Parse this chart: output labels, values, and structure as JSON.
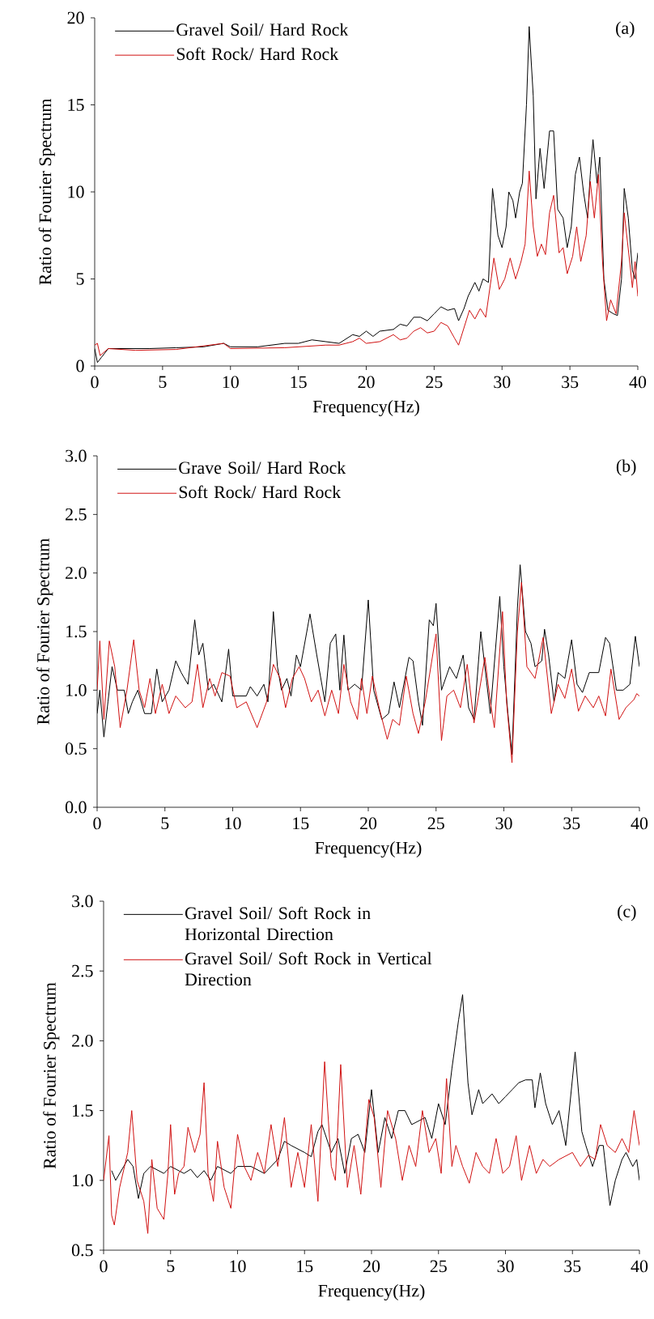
{
  "chart_data": [
    {
      "type": "line",
      "xlabel": "Frequency(Hz)",
      "ylabel": "Ratio of Fourier Spectrum",
      "annotations": [
        "(a)"
      ],
      "legend": "top left",
      "xlim": [
        0,
        40
      ],
      "xticks": [
        0,
        5,
        10,
        15,
        20,
        25,
        30,
        35,
        40
      ],
      "ylim": [
        0,
        20
      ],
      "yticks": [
        0,
        5,
        10,
        15,
        20
      ],
      "series": [
        {
          "name": "Gravel Soil/ Hard Rock",
          "color": "#000000",
          "x": [
            0,
            0.2,
            0.5,
            1,
            2,
            4,
            6,
            8,
            9.5,
            10,
            12,
            14,
            15,
            16,
            17,
            18,
            19,
            19.5,
            20,
            20.5,
            21,
            22,
            22.5,
            23,
            23.5,
            24,
            24.5,
            25,
            25.5,
            26,
            26.5,
            26.8,
            27.2,
            27.5,
            28,
            28.3,
            28.6,
            29,
            29.3,
            29.7,
            30,
            30.3,
            30.5,
            30.8,
            31,
            31.3,
            31.5,
            31.8,
            32,
            32.3,
            32.5,
            32.8,
            33.1,
            33.5,
            33.8,
            34.1,
            34.5,
            34.8,
            35.1,
            35.4,
            35.7,
            36,
            36.3,
            36.5,
            36.7,
            37,
            37.2,
            37.5,
            37.8,
            38.2,
            38.5,
            38.8,
            39,
            39.3,
            39.6,
            39.8,
            40
          ],
          "values": [
            1.0,
            0.2,
            0.5,
            1.0,
            1.0,
            1.0,
            1.05,
            1.1,
            1.3,
            1.1,
            1.1,
            1.3,
            1.3,
            1.5,
            1.4,
            1.3,
            1.8,
            1.7,
            2.0,
            1.7,
            2.0,
            2.1,
            2.4,
            2.3,
            2.8,
            2.8,
            2.6,
            3.0,
            3.4,
            3.2,
            3.3,
            2.6,
            3.3,
            4.0,
            4.8,
            4.3,
            5.0,
            4.8,
            10.2,
            7.5,
            6.8,
            8.0,
            10.0,
            9.5,
            8.5,
            10.0,
            10.5,
            15.0,
            19.5,
            15.5,
            9.6,
            12.5,
            10.2,
            13.5,
            13.5,
            9.0,
            8.5,
            6.8,
            8.0,
            11.0,
            12.0,
            10.0,
            8.5,
            11.0,
            13.0,
            10.5,
            12.0,
            5.0,
            3.2,
            3.0,
            2.9,
            5.0,
            10.2,
            8.5,
            5.5,
            5.0,
            6.5
          ]
        },
        {
          "name": "Soft Rock/ Hard Rock",
          "color": "#d01010",
          "x": [
            0,
            0.2,
            0.4,
            1,
            3,
            6,
            9.5,
            10,
            14,
            17,
            18,
            19,
            19.5,
            20,
            21,
            22,
            22.5,
            23,
            23.5,
            24,
            24.5,
            25,
            25.5,
            26,
            26.5,
            26.8,
            27.2,
            27.6,
            28,
            28.4,
            28.8,
            29.2,
            29.4,
            29.8,
            30.2,
            30.6,
            31,
            31.4,
            31.7,
            32,
            32.3,
            32.6,
            32.9,
            33.2,
            33.5,
            33.8,
            34.2,
            34.5,
            34.8,
            35.2,
            35.5,
            35.8,
            36.2,
            36.5,
            36.8,
            37.1,
            37.4,
            37.7,
            38,
            38.4,
            38.8,
            39,
            39.4,
            39.6,
            39.8,
            40
          ],
          "values": [
            1.2,
            1.3,
            0.6,
            1.0,
            0.9,
            0.95,
            1.3,
            1.0,
            1.05,
            1.2,
            1.2,
            1.4,
            1.6,
            1.3,
            1.4,
            1.8,
            1.5,
            1.6,
            2.0,
            2.2,
            1.9,
            2.0,
            2.5,
            2.3,
            1.6,
            1.2,
            2.2,
            3.2,
            2.7,
            3.3,
            2.8,
            5.0,
            6.2,
            4.4,
            5.0,
            6.2,
            5.0,
            6.0,
            7.0,
            11.2,
            8.0,
            6.3,
            7.0,
            6.4,
            8.8,
            9.8,
            6.5,
            6.8,
            5.3,
            6.3,
            8.0,
            6.0,
            7.5,
            10.6,
            8.5,
            11.0,
            6.0,
            2.6,
            3.8,
            3.0,
            6.0,
            8.8,
            6.0,
            4.5,
            6.0,
            4.0
          ]
        }
      ]
    },
    {
      "type": "line",
      "xlabel": "Frequency(Hz)",
      "ylabel": "Ratio of Fourier Spectrum",
      "annotations": [
        "(b)"
      ],
      "legend": "top left",
      "xlim": [
        0,
        40
      ],
      "xticks": [
        0,
        5,
        10,
        15,
        20,
        25,
        30,
        35,
        40
      ],
      "ylim": [
        0,
        3
      ],
      "yticks": [
        {
          "value": 0,
          "label": "0.0"
        },
        0.5,
        {
          "value": 1,
          "label": "1.0"
        },
        1.5,
        {
          "value": 2,
          "label": "2.0"
        },
        2.5,
        {
          "value": 3,
          "label": "3.0"
        }
      ],
      "series": [
        {
          "name": "Grave Soil/ Hard Rock",
          "color": "#000000",
          "x": [
            0,
            0.2,
            0.5,
            0.8,
            1.1,
            1.5,
            2,
            2.3,
            2.6,
            3,
            3.5,
            4,
            4.4,
            4.8,
            5.3,
            5.8,
            6.2,
            6.7,
            7.2,
            7.5,
            7.8,
            8.2,
            8.6,
            9.2,
            9.7,
            10,
            11,
            11.3,
            11.8,
            12.3,
            12.6,
            13,
            13.3,
            13.6,
            14,
            14.3,
            14.7,
            15,
            15.7,
            16.2,
            16.8,
            17.2,
            17.6,
            17.9,
            18.2,
            18.5,
            19,
            19.5,
            20,
            20.4,
            21,
            21.5,
            21.9,
            22.3,
            23,
            23.3,
            23.7,
            24,
            24.5,
            24.8,
            25,
            25.4,
            26,
            26.5,
            27,
            27.4,
            27.8,
            28.3,
            28.7,
            29,
            29.7,
            30,
            30.3,
            30.6,
            31,
            31.2,
            31.6,
            32,
            32.3,
            32.8,
            33,
            33.3,
            33.7,
            34,
            34.5,
            35,
            35.4,
            35.8,
            36.3,
            37,
            37.5,
            37.8,
            38.3,
            38.8,
            39.3,
            39.7,
            40
          ],
          "values": [
            0.8,
            1.0,
            0.6,
            0.9,
            1.2,
            1.0,
            1.0,
            0.8,
            0.9,
            1.0,
            0.8,
            0.8,
            1.18,
            0.9,
            1.0,
            1.25,
            1.15,
            1.05,
            1.6,
            1.3,
            1.4,
            1.0,
            1.05,
            0.9,
            1.35,
            0.95,
            0.95,
            1.03,
            0.95,
            1.05,
            0.9,
            1.67,
            1.2,
            1.0,
            1.1,
            0.95,
            1.3,
            1.2,
            1.65,
            1.3,
            0.9,
            1.4,
            1.48,
            1.0,
            1.47,
            1.0,
            1.05,
            1.0,
            1.77,
            1.0,
            0.75,
            0.8,
            1.07,
            0.85,
            1.28,
            1.25,
            0.9,
            0.7,
            1.6,
            1.55,
            1.74,
            1.0,
            1.2,
            1.1,
            1.3,
            0.85,
            0.75,
            1.5,
            1.1,
            0.8,
            1.8,
            1.2,
            0.8,
            0.45,
            1.7,
            2.07,
            1.5,
            1.4,
            1.2,
            1.25,
            1.52,
            1.3,
            0.9,
            1.15,
            1.1,
            1.43,
            1.05,
            0.98,
            1.15,
            1.15,
            1.45,
            1.4,
            1.0,
            1.0,
            1.05,
            1.46,
            1.2
          ]
        },
        {
          "name": "Soft Rock/ Hard Rock",
          "color": "#d01010",
          "x": [
            0,
            0.2,
            0.5,
            0.9,
            1.3,
            1.7,
            2.2,
            2.7,
            3.1,
            3.5,
            3.9,
            4.3,
            4.8,
            5.3,
            5.8,
            6.5,
            7,
            7.4,
            7.8,
            8.3,
            8.7,
            9.2,
            9.8,
            10.3,
            11,
            11.8,
            12.5,
            13,
            13.5,
            13.9,
            14.4,
            14.9,
            15.3,
            15.8,
            16.3,
            16.8,
            17.3,
            17.8,
            18.2,
            18.7,
            19.2,
            19.5,
            19.9,
            20.3,
            20.8,
            21.4,
            21.8,
            22.3,
            22.8,
            23.3,
            23.7,
            24.2,
            25,
            25.4,
            25.8,
            26.3,
            26.8,
            27.3,
            27.8,
            28.2,
            28.6,
            29,
            29.3,
            29.9,
            30.2,
            30.6,
            31,
            31.3,
            31.7,
            32.3,
            32.9,
            33.5,
            34,
            34.5,
            35,
            35.5,
            36,
            36.6,
            37,
            37.5,
            37.9,
            38.5,
            39,
            39.6,
            39.8,
            40
          ],
          "values": [
            1.0,
            1.42,
            0.75,
            1.42,
            1.2,
            0.68,
            1.0,
            1.43,
            1.0,
            0.85,
            1.1,
            0.8,
            1.05,
            0.8,
            0.95,
            0.85,
            0.9,
            1.22,
            0.85,
            1.1,
            0.95,
            1.15,
            1.12,
            0.85,
            0.9,
            0.68,
            0.9,
            1.22,
            1.1,
            0.85,
            1.1,
            1.2,
            1.1,
            0.9,
            1.0,
            0.78,
            1.0,
            0.8,
            1.22,
            0.9,
            0.75,
            1.1,
            0.8,
            1.12,
            0.85,
            0.58,
            0.75,
            0.7,
            1.12,
            0.8,
            0.63,
            0.9,
            1.48,
            0.57,
            0.95,
            1.0,
            0.85,
            1.22,
            0.72,
            1.0,
            1.28,
            0.9,
            0.68,
            1.67,
            0.9,
            0.38,
            1.5,
            1.92,
            1.2,
            1.1,
            1.45,
            0.8,
            1.05,
            0.93,
            1.18,
            0.82,
            0.95,
            0.85,
            0.95,
            0.78,
            1.18,
            0.75,
            0.85,
            0.92,
            0.97,
            0.95
          ]
        }
      ]
    },
    {
      "type": "line",
      "xlabel": "Frequency(Hz)",
      "ylabel": "Ratio of Fourier Spectrum",
      "annotations": [
        "(c)"
      ],
      "legend": "top left",
      "xlim": [
        0,
        40
      ],
      "xticks": [
        0,
        5,
        10,
        15,
        20,
        25,
        30,
        35,
        40
      ],
      "ylim": [
        0.5,
        3
      ],
      "yticks": [
        0.5,
        {
          "value": 1,
          "label": "1.0"
        },
        1.5,
        {
          "value": 2,
          "label": "2.0"
        },
        2.5,
        {
          "value": 3,
          "label": "3.0"
        }
      ],
      "series": [
        {
          "name": "Gravel Soil/ Soft Rock in Horizontal Direction",
          "color": "#000000",
          "x": [
            0.6,
            0.9,
            1.5,
            1.8,
            2.2,
            2.6,
            3,
            3.5,
            4.5,
            5,
            6,
            6.5,
            7,
            7.5,
            8,
            8.5,
            9.5,
            10,
            11,
            12,
            13,
            13.5,
            14,
            15,
            15.5,
            16,
            16.3,
            17,
            17.5,
            18,
            18.5,
            19,
            19.5,
            20,
            20.5,
            21,
            21.5,
            22,
            22.5,
            23,
            24,
            24.5,
            25,
            25.5,
            26,
            26.5,
            26.8,
            27.2,
            27.5,
            28,
            28.3,
            29,
            29.5,
            30,
            30.5,
            31,
            31.5,
            32,
            32.2,
            32.6,
            33,
            33.5,
            34,
            34.5,
            35.2,
            35.7,
            36,
            36.5,
            37,
            37.3,
            37.8,
            38.2,
            38.7,
            39,
            39.5,
            39.8,
            40
          ],
          "values": [
            1.07,
            1.0,
            1.1,
            1.15,
            1.1,
            0.87,
            1.05,
            1.1,
            1.05,
            1.1,
            1.05,
            1.08,
            1.02,
            1.07,
            1.0,
            1.1,
            1.05,
            1.1,
            1.1,
            1.05,
            1.15,
            1.28,
            1.25,
            1.2,
            1.17,
            1.35,
            1.4,
            1.2,
            1.3,
            1.05,
            1.3,
            1.33,
            1.2,
            1.65,
            1.2,
            1.45,
            1.3,
            1.5,
            1.5,
            1.4,
            1.45,
            1.3,
            1.55,
            1.4,
            1.8,
            2.15,
            2.33,
            1.7,
            1.47,
            1.65,
            1.55,
            1.62,
            1.55,
            1.6,
            1.65,
            1.7,
            1.72,
            1.72,
            1.52,
            1.77,
            1.55,
            1.4,
            1.5,
            1.25,
            1.92,
            1.35,
            1.25,
            1.1,
            1.25,
            1.25,
            0.82,
            1.0,
            1.15,
            1.2,
            1.1,
            1.15,
            1.0
          ]
        },
        {
          "name": "Gravel Soil/ Soft Rock in Vertical Direction",
          "color": "#d01010",
          "x": [
            0,
            0.4,
            0.6,
            0.8,
            1.2,
            1.8,
            2.1,
            2.5,
            3,
            3.3,
            3.6,
            4,
            4.5,
            4.8,
            5,
            5.3,
            5.6,
            6,
            6.3,
            6.8,
            7.2,
            7.5,
            7.8,
            8.2,
            8.5,
            9,
            9.5,
            10,
            10.5,
            11,
            11.5,
            12,
            12.5,
            13,
            13.5,
            14,
            14.5,
            15,
            15.5,
            16,
            16.5,
            17,
            17.3,
            17.7,
            18.2,
            18.7,
            19.2,
            19.8,
            20.2,
            20.7,
            21.2,
            21.8,
            22.3,
            22.8,
            23.3,
            23.8,
            24.3,
            24.8,
            25.2,
            25.6,
            26,
            26.3,
            26.8,
            27.3,
            27.8,
            28.3,
            28.8,
            29.3,
            29.8,
            30.3,
            30.8,
            31.2,
            31.8,
            32.3,
            32.8,
            33.3,
            34,
            35,
            35.6,
            36.2,
            36.7,
            37.1,
            37.6,
            38.2,
            38.7,
            39.2,
            39.6,
            40
          ],
          "values": [
            1.0,
            1.32,
            0.75,
            0.68,
            0.95,
            1.2,
            1.5,
            1.0,
            0.85,
            0.62,
            1.15,
            0.8,
            0.72,
            1.05,
            1.4,
            0.9,
            1.05,
            1.1,
            1.38,
            1.2,
            1.33,
            1.7,
            1.05,
            0.85,
            1.28,
            0.95,
            0.8,
            1.33,
            1.1,
            1.0,
            1.2,
            1.05,
            1.4,
            1.1,
            1.45,
            0.95,
            1.2,
            0.95,
            1.4,
            0.85,
            1.85,
            1.1,
            1.0,
            1.83,
            0.95,
            1.25,
            0.9,
            1.58,
            1.45,
            0.95,
            1.5,
            1.3,
            1.0,
            1.25,
            1.1,
            1.5,
            1.2,
            1.3,
            1.05,
            1.73,
            1.1,
            1.25,
            1.1,
            0.98,
            1.2,
            1.1,
            1.05,
            1.3,
            1.05,
            1.1,
            1.32,
            1.0,
            1.25,
            1.05,
            1.15,
            1.1,
            1.15,
            1.2,
            1.1,
            1.18,
            1.15,
            1.4,
            1.25,
            1.2,
            1.3,
            1.2,
            1.5,
            1.25
          ]
        }
      ]
    }
  ]
}
